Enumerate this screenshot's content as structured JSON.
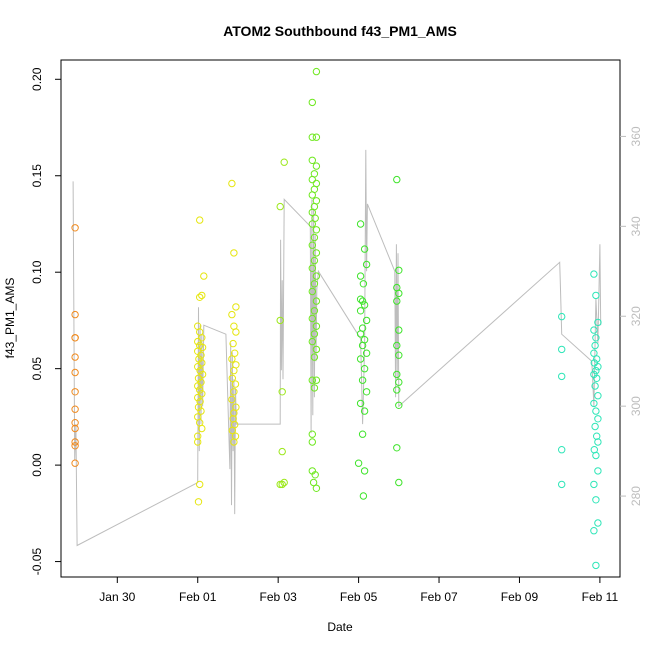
{
  "chart_data": {
    "type": "scatter",
    "title": "ATOM2 Southbound f43_PM1_AMS",
    "xlabel": "Date",
    "ylabel": "f43_PM1_AMS",
    "x_unit": "days (Feb 01 = 1)",
    "xlim": [
      -2.4,
      11.5
    ],
    "ylim": [
      -0.058,
      0.21
    ],
    "y2lim": [
      262,
      377
    ],
    "x_ticks": [
      {
        "value": -1,
        "label": "Jan 30"
      },
      {
        "value": 1,
        "label": "Feb 01"
      },
      {
        "value": 3,
        "label": "Feb 03"
      },
      {
        "value": 5,
        "label": "Feb 05"
      },
      {
        "value": 7,
        "label": "Feb 07"
      },
      {
        "value": 9,
        "label": "Feb 09"
      },
      {
        "value": 11,
        "label": "Feb 11"
      }
    ],
    "y_ticks": [
      {
        "value": -0.05,
        "label": "-0.05"
      },
      {
        "value": 0.0,
        "label": "0.00"
      },
      {
        "value": 0.05,
        "label": "0.05"
      },
      {
        "value": 0.1,
        "label": "0.10"
      },
      {
        "value": 0.15,
        "label": "0.15"
      },
      {
        "value": 0.2,
        "label": "0.20"
      }
    ],
    "y2_ticks": [
      {
        "value": 280,
        "label": "280"
      },
      {
        "value": 300,
        "label": "300"
      },
      {
        "value": 320,
        "label": "320"
      },
      {
        "value": 340,
        "label": "340"
      },
      {
        "value": 360,
        "label": "360"
      }
    ],
    "grid": false,
    "series": [
      {
        "color": "#f08a1e",
        "points": [
          {
            "x": -2.05,
            "y": 0.123
          },
          {
            "x": -2.05,
            "y": 0.078
          },
          {
            "x": -2.05,
            "y": 0.066
          },
          {
            "x": -2.05,
            "y": 0.066
          },
          {
            "x": -2.05,
            "y": 0.056
          },
          {
            "x": -2.05,
            "y": 0.048
          },
          {
            "x": -2.05,
            "y": 0.038
          },
          {
            "x": -2.05,
            "y": 0.029
          },
          {
            "x": -2.05,
            "y": 0.022
          },
          {
            "x": -2.05,
            "y": 0.019
          },
          {
            "x": -2.05,
            "y": 0.012
          },
          {
            "x": -2.05,
            "y": 0.01
          },
          {
            "x": -2.05,
            "y": 0.001
          }
        ]
      },
      {
        "color": "#e6e610",
        "points": [
          {
            "x": 1.05,
            "y": 0.127
          },
          {
            "x": 1.15,
            "y": 0.098
          },
          {
            "x": 1.05,
            "y": 0.087
          },
          {
            "x": 1.1,
            "y": 0.088
          },
          {
            "x": 1.0,
            "y": 0.072
          },
          {
            "x": 1.05,
            "y": 0.069
          },
          {
            "x": 1.1,
            "y": 0.066
          },
          {
            "x": 1.0,
            "y": 0.064
          },
          {
            "x": 1.05,
            "y": 0.062
          },
          {
            "x": 1.12,
            "y": 0.061
          },
          {
            "x": 1.0,
            "y": 0.059
          },
          {
            "x": 1.08,
            "y": 0.057
          },
          {
            "x": 1.03,
            "y": 0.055
          },
          {
            "x": 1.1,
            "y": 0.053
          },
          {
            "x": 1.0,
            "y": 0.051
          },
          {
            "x": 1.06,
            "y": 0.049
          },
          {
            "x": 1.12,
            "y": 0.047
          },
          {
            "x": 1.02,
            "y": 0.045
          },
          {
            "x": 1.08,
            "y": 0.043
          },
          {
            "x": 1.0,
            "y": 0.041
          },
          {
            "x": 1.05,
            "y": 0.039
          },
          {
            "x": 1.1,
            "y": 0.037
          },
          {
            "x": 1.0,
            "y": 0.035
          },
          {
            "x": 1.06,
            "y": 0.033
          },
          {
            "x": 1.02,
            "y": 0.03
          },
          {
            "x": 1.08,
            "y": 0.028
          },
          {
            "x": 1.0,
            "y": 0.025
          },
          {
            "x": 1.05,
            "y": 0.022
          },
          {
            "x": 1.1,
            "y": 0.019
          },
          {
            "x": 1.0,
            "y": 0.015
          },
          {
            "x": 1.0,
            "y": 0.012
          },
          {
            "x": 1.05,
            "y": -0.01
          },
          {
            "x": 1.02,
            "y": -0.019
          },
          {
            "x": 1.85,
            "y": 0.146
          },
          {
            "x": 1.9,
            "y": 0.11
          },
          {
            "x": 1.95,
            "y": 0.082
          },
          {
            "x": 1.85,
            "y": 0.078
          },
          {
            "x": 1.9,
            "y": 0.072
          },
          {
            "x": 1.95,
            "y": 0.069
          },
          {
            "x": 1.88,
            "y": 0.063
          },
          {
            "x": 1.92,
            "y": 0.058
          },
          {
            "x": 1.85,
            "y": 0.055
          },
          {
            "x": 1.95,
            "y": 0.052
          },
          {
            "x": 1.9,
            "y": 0.049
          },
          {
            "x": 1.86,
            "y": 0.045
          },
          {
            "x": 1.94,
            "y": 0.042
          },
          {
            "x": 1.9,
            "y": 0.038
          },
          {
            "x": 1.85,
            "y": 0.034
          },
          {
            "x": 1.95,
            "y": 0.03
          },
          {
            "x": 1.9,
            "y": 0.027
          },
          {
            "x": 1.88,
            "y": 0.024
          },
          {
            "x": 1.92,
            "y": 0.021
          },
          {
            "x": 1.86,
            "y": 0.018
          },
          {
            "x": 1.94,
            "y": 0.015
          },
          {
            "x": 1.9,
            "y": 0.012
          }
        ]
      },
      {
        "color": "#9ce81a",
        "points": [
          {
            "x": 3.15,
            "y": 0.157
          },
          {
            "x": 3.05,
            "y": 0.134
          },
          {
            "x": 3.05,
            "y": 0.075
          },
          {
            "x": 3.1,
            "y": 0.038
          },
          {
            "x": 3.1,
            "y": 0.007
          },
          {
            "x": 3.05,
            "y": -0.01
          },
          {
            "x": 3.1,
            "y": -0.01
          },
          {
            "x": 3.15,
            "y": -0.009
          }
        ]
      },
      {
        "color": "#6ee81e",
        "points": [
          {
            "x": 3.95,
            "y": 0.204
          },
          {
            "x": 3.85,
            "y": 0.188
          },
          {
            "x": 3.85,
            "y": 0.17
          },
          {
            "x": 3.95,
            "y": 0.17
          },
          {
            "x": 3.85,
            "y": 0.158
          },
          {
            "x": 3.95,
            "y": 0.155
          },
          {
            "x": 3.9,
            "y": 0.151
          },
          {
            "x": 3.85,
            "y": 0.148
          },
          {
            "x": 3.95,
            "y": 0.146
          },
          {
            "x": 3.9,
            "y": 0.143
          },
          {
            "x": 3.85,
            "y": 0.14
          },
          {
            "x": 3.95,
            "y": 0.137
          },
          {
            "x": 3.9,
            "y": 0.134
          },
          {
            "x": 3.85,
            "y": 0.131
          },
          {
            "x": 3.92,
            "y": 0.128
          },
          {
            "x": 3.85,
            "y": 0.125
          },
          {
            "x": 3.95,
            "y": 0.122
          },
          {
            "x": 3.9,
            "y": 0.118
          },
          {
            "x": 3.85,
            "y": 0.114
          },
          {
            "x": 3.95,
            "y": 0.11
          },
          {
            "x": 3.9,
            "y": 0.106
          },
          {
            "x": 3.85,
            "y": 0.102
          },
          {
            "x": 3.95,
            "y": 0.098
          },
          {
            "x": 3.9,
            "y": 0.094
          },
          {
            "x": 3.85,
            "y": 0.09
          },
          {
            "x": 3.95,
            "y": 0.085
          },
          {
            "x": 3.9,
            "y": 0.08
          },
          {
            "x": 3.85,
            "y": 0.076
          },
          {
            "x": 3.95,
            "y": 0.072
          },
          {
            "x": 3.9,
            "y": 0.068
          },
          {
            "x": 3.85,
            "y": 0.064
          },
          {
            "x": 3.95,
            "y": 0.06
          },
          {
            "x": 3.9,
            "y": 0.056
          },
          {
            "x": 3.85,
            "y": 0.044
          },
          {
            "x": 3.95,
            "y": 0.044
          },
          {
            "x": 3.9,
            "y": 0.04
          },
          {
            "x": 3.85,
            "y": 0.016
          },
          {
            "x": 3.85,
            "y": 0.012
          },
          {
            "x": 3.85,
            "y": -0.003
          },
          {
            "x": 3.92,
            "y": -0.005
          },
          {
            "x": 3.88,
            "y": -0.009
          },
          {
            "x": 3.95,
            "y": -0.012
          }
        ]
      },
      {
        "color": "#3ee42a",
        "points": [
          {
            "x": 5.05,
            "y": 0.125
          },
          {
            "x": 5.15,
            "y": 0.112
          },
          {
            "x": 5.2,
            "y": 0.104
          },
          {
            "x": 5.05,
            "y": 0.098
          },
          {
            "x": 5.12,
            "y": 0.094
          },
          {
            "x": 5.05,
            "y": 0.086
          },
          {
            "x": 5.1,
            "y": 0.085
          },
          {
            "x": 5.15,
            "y": 0.083
          },
          {
            "x": 5.05,
            "y": 0.08
          },
          {
            "x": 5.2,
            "y": 0.075
          },
          {
            "x": 5.1,
            "y": 0.071
          },
          {
            "x": 5.05,
            "y": 0.068
          },
          {
            "x": 5.15,
            "y": 0.065
          },
          {
            "x": 5.1,
            "y": 0.062
          },
          {
            "x": 5.2,
            "y": 0.058
          },
          {
            "x": 5.05,
            "y": 0.055
          },
          {
            "x": 5.15,
            "y": 0.05
          },
          {
            "x": 5.1,
            "y": 0.044
          },
          {
            "x": 5.2,
            "y": 0.038
          },
          {
            "x": 5.05,
            "y": 0.032
          },
          {
            "x": 5.15,
            "y": 0.028
          },
          {
            "x": 5.1,
            "y": 0.016
          },
          {
            "x": 5.0,
            "y": 0.001
          },
          {
            "x": 5.15,
            "y": -0.003
          },
          {
            "x": 5.12,
            "y": -0.016
          },
          {
            "x": 5.95,
            "y": 0.148
          },
          {
            "x": 6.0,
            "y": 0.101
          },
          {
            "x": 5.95,
            "y": 0.092
          },
          {
            "x": 6.0,
            "y": 0.089
          },
          {
            "x": 5.95,
            "y": 0.085
          },
          {
            "x": 6.0,
            "y": 0.07
          },
          {
            "x": 5.95,
            "y": 0.062
          },
          {
            "x": 6.0,
            "y": 0.057
          },
          {
            "x": 5.95,
            "y": 0.047
          },
          {
            "x": 6.0,
            "y": 0.043
          },
          {
            "x": 5.95,
            "y": 0.039
          },
          {
            "x": 6.0,
            "y": 0.031
          },
          {
            "x": 5.95,
            "y": 0.009
          },
          {
            "x": 6.0,
            "y": -0.009
          }
        ]
      },
      {
        "color": "#2ee6b8",
        "points": [
          {
            "x": 10.05,
            "y": 0.077
          },
          {
            "x": 10.05,
            "y": 0.06
          },
          {
            "x": 10.05,
            "y": 0.046
          },
          {
            "x": 10.05,
            "y": 0.008
          },
          {
            "x": 10.05,
            "y": -0.01
          },
          {
            "x": 10.85,
            "y": 0.099
          },
          {
            "x": 10.9,
            "y": 0.088
          },
          {
            "x": 10.95,
            "y": 0.074
          },
          {
            "x": 10.85,
            "y": 0.07
          },
          {
            "x": 10.9,
            "y": 0.066
          },
          {
            "x": 10.88,
            "y": 0.062
          },
          {
            "x": 10.85,
            "y": 0.058
          },
          {
            "x": 10.92,
            "y": 0.055
          },
          {
            "x": 10.86,
            "y": 0.053
          },
          {
            "x": 10.95,
            "y": 0.051
          },
          {
            "x": 10.9,
            "y": 0.049
          },
          {
            "x": 10.85,
            "y": 0.047
          },
          {
            "x": 10.92,
            "y": 0.045
          },
          {
            "x": 10.88,
            "y": 0.041
          },
          {
            "x": 10.95,
            "y": 0.036
          },
          {
            "x": 10.85,
            "y": 0.032
          },
          {
            "x": 10.9,
            "y": 0.028
          },
          {
            "x": 10.95,
            "y": 0.024
          },
          {
            "x": 10.88,
            "y": 0.02
          },
          {
            "x": 10.92,
            "y": 0.015
          },
          {
            "x": 10.95,
            "y": 0.012
          },
          {
            "x": 10.86,
            "y": 0.008
          },
          {
            "x": 10.9,
            "y": 0.005
          },
          {
            "x": 10.95,
            "y": -0.003
          },
          {
            "x": 10.85,
            "y": -0.01
          },
          {
            "x": 10.9,
            "y": -0.018
          },
          {
            "x": 10.95,
            "y": -0.03
          },
          {
            "x": 10.85,
            "y": -0.034
          },
          {
            "x": 10.9,
            "y": -0.052
          }
        ]
      }
    ],
    "line": {
      "color": "#bdbdbd",
      "points": [
        {
          "x": -2.1,
          "y": 350
        },
        {
          "x": -2.06,
          "y": 288
        },
        {
          "x": -2.03,
          "y": 296
        },
        {
          "x": -2.0,
          "y": 269
        },
        {
          "x": 1.0,
          "y": 283
        },
        {
          "x": 1.02,
          "y": 322
        },
        {
          "x": 1.04,
          "y": 290
        },
        {
          "x": 1.06,
          "y": 318
        },
        {
          "x": 1.08,
          "y": 296
        },
        {
          "x": 1.1,
          "y": 316
        },
        {
          "x": 1.12,
          "y": 300
        },
        {
          "x": 1.15,
          "y": 318
        },
        {
          "x": 1.7,
          "y": 316
        },
        {
          "x": 1.8,
          "y": 286
        },
        {
          "x": 1.82,
          "y": 314
        },
        {
          "x": 1.84,
          "y": 278
        },
        {
          "x": 1.86,
          "y": 312
        },
        {
          "x": 1.88,
          "y": 290
        },
        {
          "x": 1.9,
          "y": 306
        },
        {
          "x": 1.92,
          "y": 276
        },
        {
          "x": 1.94,
          "y": 304
        },
        {
          "x": 1.96,
          "y": 296
        },
        {
          "x": 2.0,
          "y": 296
        },
        {
          "x": 3.05,
          "y": 296
        },
        {
          "x": 3.06,
          "y": 337
        },
        {
          "x": 3.08,
          "y": 308
        },
        {
          "x": 3.1,
          "y": 328
        },
        {
          "x": 3.12,
          "y": 306
        },
        {
          "x": 3.15,
          "y": 346
        },
        {
          "x": 3.8,
          "y": 340
        },
        {
          "x": 3.82,
          "y": 294
        },
        {
          "x": 3.84,
          "y": 346
        },
        {
          "x": 3.86,
          "y": 298
        },
        {
          "x": 3.88,
          "y": 344
        },
        {
          "x": 3.9,
          "y": 302
        },
        {
          "x": 3.92,
          "y": 338
        },
        {
          "x": 3.94,
          "y": 310
        },
        {
          "x": 3.96,
          "y": 326
        },
        {
          "x": 4.0,
          "y": 330
        },
        {
          "x": 5.05,
          "y": 315
        },
        {
          "x": 5.1,
          "y": 296
        },
        {
          "x": 5.15,
          "y": 313
        },
        {
          "x": 5.18,
          "y": 357
        },
        {
          "x": 5.2,
          "y": 330
        },
        {
          "x": 5.22,
          "y": 345
        },
        {
          "x": 5.9,
          "y": 330
        },
        {
          "x": 5.92,
          "y": 302
        },
        {
          "x": 5.94,
          "y": 336
        },
        {
          "x": 5.96,
          "y": 306
        },
        {
          "x": 5.98,
          "y": 334
        },
        {
          "x": 6.0,
          "y": 300
        },
        {
          "x": 10.0,
          "y": 332
        },
        {
          "x": 10.02,
          "y": 326
        },
        {
          "x": 10.05,
          "y": 316
        },
        {
          "x": 10.8,
          "y": 310
        },
        {
          "x": 10.85,
          "y": 300
        },
        {
          "x": 10.9,
          "y": 324
        },
        {
          "x": 10.95,
          "y": 314
        },
        {
          "x": 11.0,
          "y": 336
        },
        {
          "x": 11.02,
          "y": 318
        }
      ]
    }
  }
}
